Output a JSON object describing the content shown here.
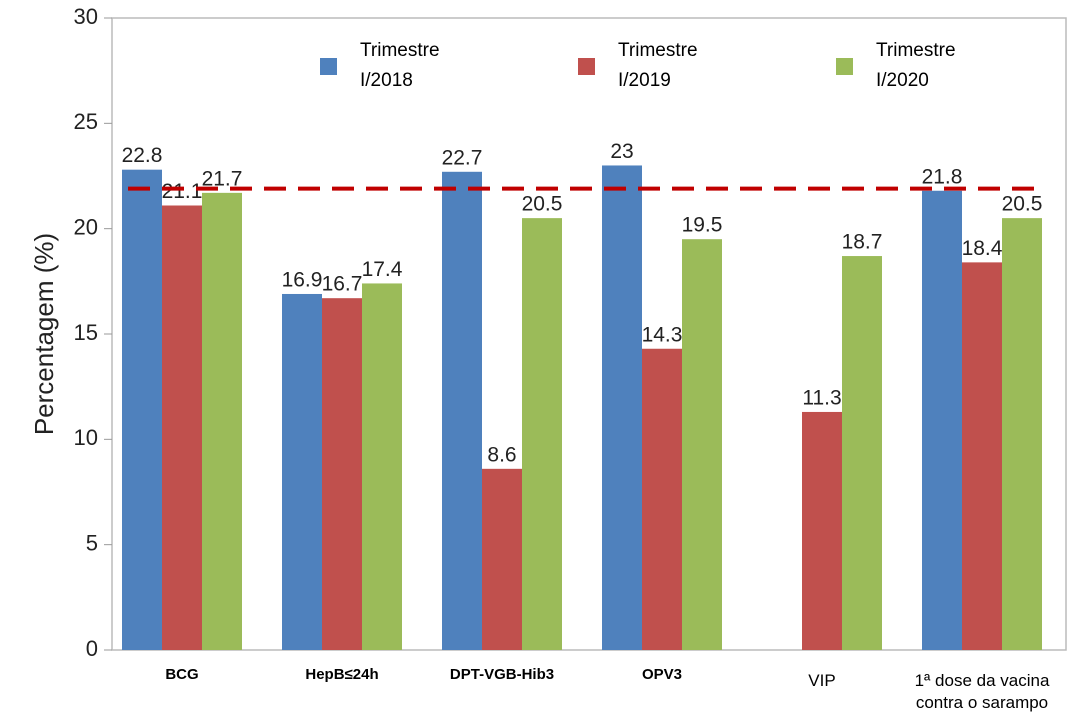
{
  "chart_data": {
    "type": "bar",
    "y_label": "Percentagem   (%)",
    "categories": [
      "BCG",
      "HepB≤24h",
      "DPT-VGB-Hib3",
      "OPV3",
      "VIP",
      "1ª dose da vacina contra o sarampo"
    ],
    "series": [
      {
        "name": "Trimestre I/2018",
        "color": "#4f81bd",
        "values": [
          22.8,
          16.9,
          22.7,
          23,
          null,
          21.8
        ]
      },
      {
        "name": "Trimestre I/2019",
        "color": "#c0504d",
        "values": [
          21.1,
          16.7,
          8.6,
          14.3,
          11.3,
          18.4
        ]
      },
      {
        "name": "Trimestre I/2020",
        "color": "#9bbb59",
        "values": [
          21.7,
          17.4,
          20.5,
          19.5,
          18.7,
          20.5
        ]
      }
    ],
    "reference_line": {
      "value": 21.9,
      "color": "#c00000"
    },
    "ylim": [
      0,
      30
    ],
    "yticks": [
      0,
      5,
      10,
      15,
      20,
      25,
      30
    ],
    "grid": false
  }
}
